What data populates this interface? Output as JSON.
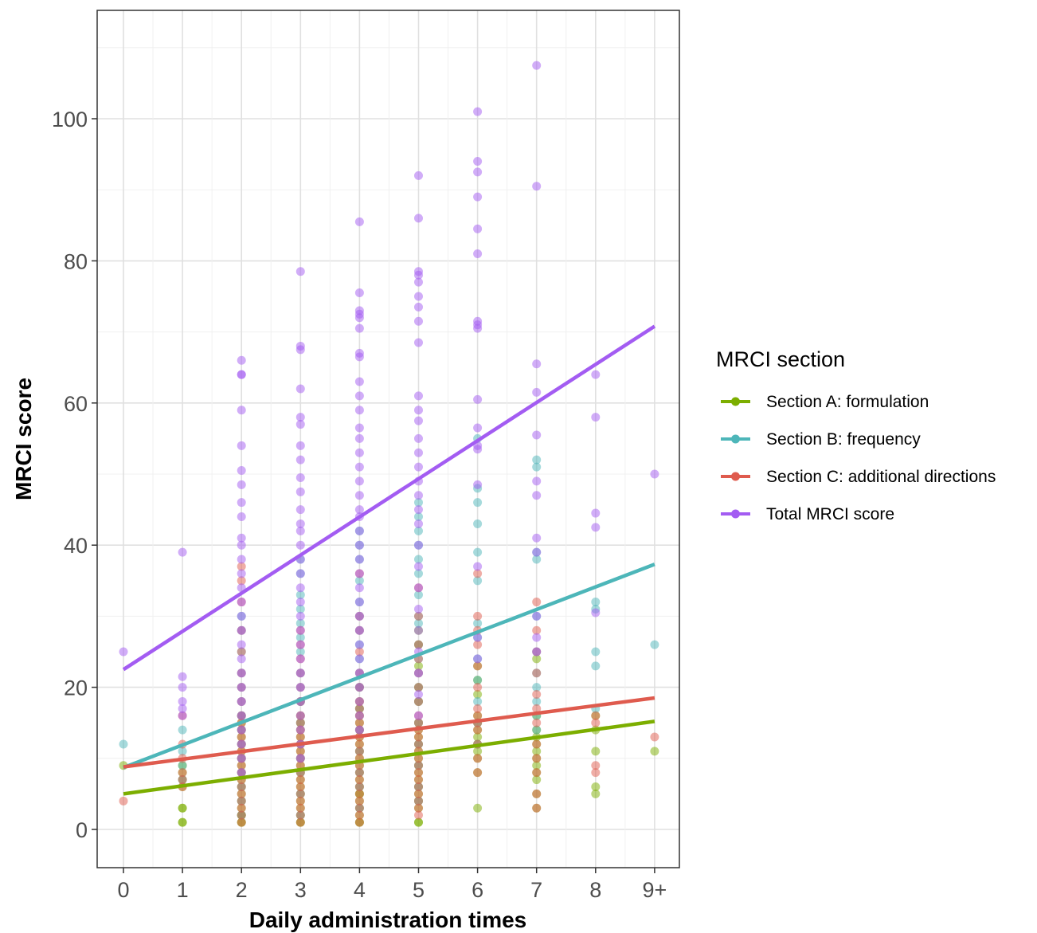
{
  "chart_data": {
    "type": "scatter",
    "title": "",
    "xlabel": "Daily administration times",
    "ylabel": "MRCI score",
    "categories": [
      "0",
      "1",
      "2",
      "3",
      "4",
      "5",
      "6",
      "7",
      "8",
      "9+"
    ],
    "ylim": [
      -7.5,
      115
    ],
    "yticks": [
      0,
      20,
      40,
      60,
      80,
      100
    ],
    "grid": true,
    "legend": {
      "title": "MRCI section",
      "position": "right"
    },
    "series": [
      {
        "name": "Section A: formulation",
        "color": "#7cae00",
        "trend": [
          5.0,
          15.2
        ],
        "points": [
          [
            0,
            [
              9
            ]
          ],
          [
            1,
            [
              1,
              1,
              3,
              3,
              6,
              7,
              8,
              9
            ]
          ],
          [
            2,
            [
              1,
              1,
              2,
              2,
              3,
              4,
              5,
              6,
              7,
              8,
              9,
              10,
              11,
              12,
              13,
              14,
              15,
              16
            ]
          ],
          [
            3,
            [
              1,
              1,
              2,
              3,
              4,
              5,
              6,
              7,
              8,
              9,
              10,
              11,
              12,
              13,
              14,
              15,
              16,
              18
            ]
          ],
          [
            4,
            [
              1,
              1,
              2,
              3,
              4,
              5,
              5,
              6,
              7,
              8,
              9,
              10,
              11,
              12,
              13,
              14,
              15,
              16,
              17,
              18,
              20
            ]
          ],
          [
            5,
            [
              1,
              1,
              3,
              4,
              5,
              6,
              7,
              8,
              9,
              10,
              11,
              12,
              13,
              14,
              15,
              18,
              20,
              23,
              26,
              28
            ]
          ],
          [
            6,
            [
              3,
              8,
              10,
              11,
              12,
              13,
              14,
              15,
              16,
              19,
              21,
              23
            ]
          ],
          [
            7,
            [
              3,
              5,
              7,
              8,
              9,
              10,
              11,
              12,
              13,
              14,
              16,
              24
            ]
          ],
          [
            8,
            [
              5,
              6,
              11,
              14,
              16
            ]
          ],
          [
            9,
            [
              11
            ]
          ]
        ]
      },
      {
        "name": "Section B: frequency",
        "color": "#4db6b9",
        "trend": [
          8.7,
          37.3
        ],
        "points": [
          [
            0,
            [
              12
            ]
          ],
          [
            1,
            [
              7,
              9,
              11,
              14
            ]
          ],
          [
            2,
            [
              2,
              4,
              6,
              8,
              10,
              12,
              14,
              16,
              18,
              20,
              22,
              25,
              28,
              30
            ]
          ],
          [
            3,
            [
              2,
              5,
              8,
              10,
              12,
              15,
              18,
              20,
              22,
              25,
              27,
              29,
              31,
              33,
              36,
              38
            ]
          ],
          [
            4,
            [
              3,
              6,
              8,
              11,
              14,
              17,
              20,
              22,
              24,
              26,
              28,
              30,
              32,
              35,
              38,
              40,
              42
            ]
          ],
          [
            5,
            [
              4,
              6,
              9,
              12,
              15,
              18,
              20,
              22,
              24,
              26,
              29,
              30,
              33,
              36,
              38,
              40,
              42,
              44,
              46
            ]
          ],
          [
            6,
            [
              12,
              15,
              18,
              21,
              24,
              27,
              29,
              35,
              39,
              43,
              46,
              48,
              55
            ]
          ],
          [
            7,
            [
              14,
              16,
              18,
              20,
              22,
              25,
              30,
              38,
              39,
              51,
              52
            ]
          ],
          [
            8,
            [
              17,
              23,
              25,
              31,
              32
            ]
          ],
          [
            9,
            [
              26
            ]
          ]
        ]
      },
      {
        "name": "Section C: additional directions",
        "color": "#df5b4e",
        "trend": [
          8.8,
          18.5
        ],
        "points": [
          [
            0,
            [
              4
            ]
          ],
          [
            1,
            [
              6,
              7,
              8,
              10,
              12,
              16
            ]
          ],
          [
            2,
            [
              1,
              2,
              3,
              4,
              5,
              6,
              7,
              8,
              9,
              10,
              11,
              12,
              13,
              14,
              15,
              16,
              18,
              20,
              22,
              25,
              28,
              32,
              35,
              37
            ]
          ],
          [
            3,
            [
              1,
              2,
              3,
              4,
              5,
              6,
              7,
              8,
              9,
              10,
              11,
              12,
              13,
              14,
              15,
              16,
              18,
              20,
              22,
              24,
              26,
              28
            ]
          ],
          [
            4,
            [
              1,
              2,
              3,
              4,
              5,
              6,
              7,
              8,
              9,
              10,
              11,
              12,
              13,
              14,
              15,
              16,
              17,
              18,
              20,
              22,
              25,
              28,
              30,
              36
            ]
          ],
          [
            5,
            [
              2,
              3,
              4,
              5,
              6,
              7,
              8,
              9,
              10,
              11,
              12,
              13,
              14,
              15,
              16,
              18,
              20,
              22,
              24,
              26,
              30,
              34
            ]
          ],
          [
            6,
            [
              8,
              10,
              12,
              14,
              15,
              16,
              17,
              20,
              23,
              26,
              28,
              30,
              36
            ]
          ],
          [
            7,
            [
              3,
              5,
              8,
              10,
              12,
              15,
              17,
              19,
              22,
              25,
              28,
              32
            ]
          ],
          [
            8,
            [
              8,
              9,
              15,
              16
            ]
          ],
          [
            9,
            [
              13
            ]
          ]
        ]
      },
      {
        "name": "Total MRCI score",
        "color": "#a35cf2",
        "trend": [
          22.5,
          70.8
        ],
        "points": [
          [
            0,
            [
              25
            ]
          ],
          [
            1,
            [
              16,
              17,
              18,
              20,
              21.5,
              39
            ]
          ],
          [
            2,
            [
              8,
              10,
              12,
              14,
              16,
              18,
              20,
              22,
              24,
              26,
              28,
              30,
              32,
              34,
              36,
              38,
              40,
              41,
              44,
              46,
              48.5,
              50.5,
              54,
              59,
              64,
              64,
              66
            ]
          ],
          [
            3,
            [
              10,
              12,
              14,
              16,
              18,
              20,
              22,
              24,
              26,
              28,
              30,
              32,
              34,
              36,
              38,
              40,
              42,
              43,
              45,
              47.5,
              49.5,
              52,
              54,
              57,
              58,
              62,
              67.5,
              68,
              78.5
            ]
          ],
          [
            4,
            [
              14,
              16,
              18,
              20,
              22,
              24,
              26,
              28,
              30,
              32,
              34,
              36,
              38,
              40,
              42,
              44,
              45,
              47,
              49,
              51,
              53,
              55,
              56.5,
              59,
              61,
              63,
              66.5,
              67,
              70.5,
              72,
              72.5,
              73,
              75.5,
              85.5
            ]
          ],
          [
            5,
            [
              16,
              19,
              22,
              25,
              28,
              31,
              34,
              37,
              40,
              43,
              45,
              47,
              49,
              51,
              53,
              55,
              57.5,
              59,
              61,
              68.5,
              71.5,
              73.5,
              75,
              77,
              78,
              78.5,
              86,
              92
            ]
          ],
          [
            6,
            [
              24,
              27,
              37,
              48.5,
              53.5,
              54,
              56.5,
              60.5,
              70.5,
              71,
              71.5,
              81,
              84.5,
              89,
              92.5,
              94,
              101
            ]
          ],
          [
            7,
            [
              25,
              27,
              30,
              39,
              41,
              47,
              49,
              55.5,
              61.5,
              65.5,
              90.5,
              107.5
            ]
          ],
          [
            8,
            [
              30.5,
              42.5,
              44.5,
              58,
              64
            ]
          ],
          [
            9,
            [
              50
            ]
          ]
        ]
      }
    ]
  }
}
